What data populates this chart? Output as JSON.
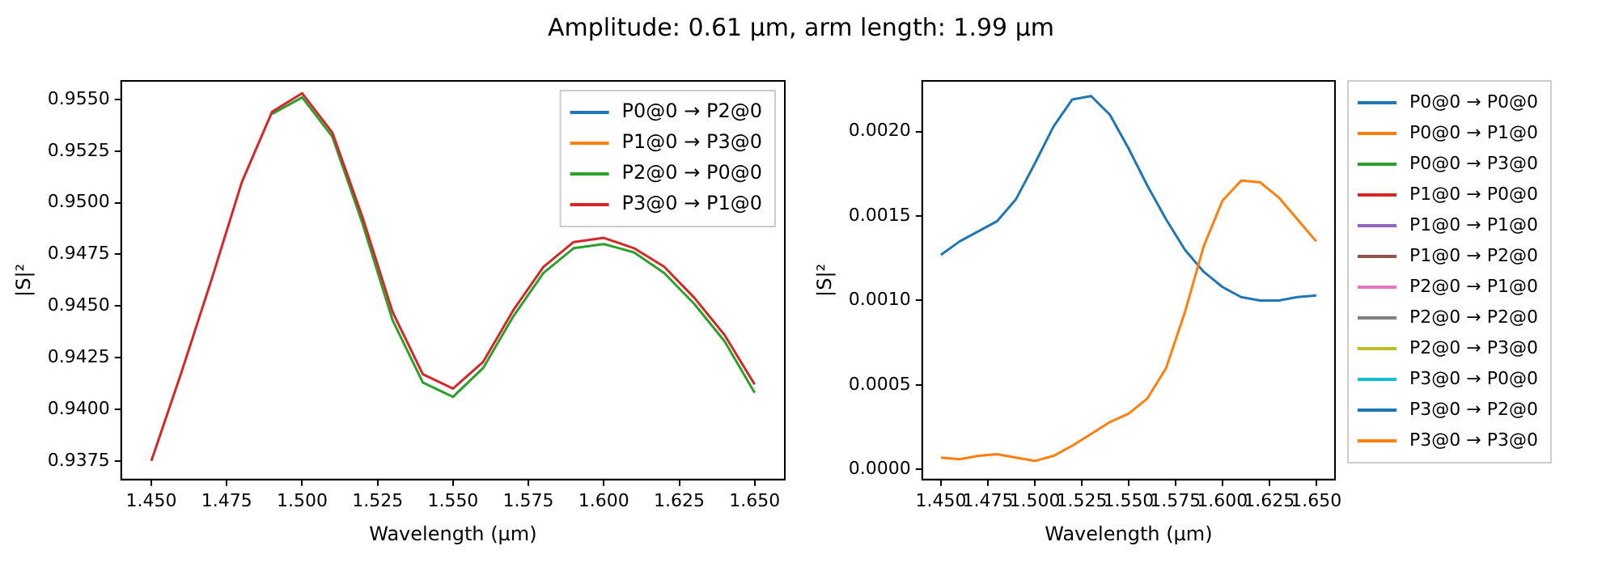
{
  "chart_data": [
    {
      "type": "line",
      "title": "Amplitude: 0.61 µm, arm length: 1.99 µm",
      "xlabel": "Wavelength (µm)",
      "ylabel": "|S|²",
      "legend": "top right",
      "grid": false,
      "x": [
        1.45,
        1.46,
        1.47,
        1.48,
        1.49,
        1.5,
        1.51,
        1.52,
        1.53,
        1.54,
        1.55,
        1.56,
        1.57,
        1.58,
        1.59,
        1.6,
        1.61,
        1.62,
        1.63,
        1.64,
        1.65
      ],
      "xlim": [
        1.44,
        1.66
      ],
      "xticks": [
        {
          "value": 1.45,
          "label": "1.450"
        },
        {
          "value": 1.475,
          "label": "1.475"
        },
        {
          "value": 1.5,
          "label": "1.500"
        },
        {
          "value": 1.525,
          "label": "1.525"
        },
        {
          "value": 1.55,
          "label": "1.550"
        },
        {
          "value": 1.575,
          "label": "1.575"
        },
        {
          "value": 1.6,
          "label": "1.600"
        },
        {
          "value": 1.625,
          "label": "1.625"
        },
        {
          "value": 1.65,
          "label": "1.650"
        }
      ],
      "ylim": [
        0.9366,
        0.9559
      ],
      "yticks": [
        {
          "value": 0.9375,
          "label": "0.9375"
        },
        {
          "value": 0.94,
          "label": "0.9400"
        },
        {
          "value": 0.9425,
          "label": "0.9425"
        },
        {
          "value": 0.945,
          "label": "0.9450"
        },
        {
          "value": 0.9475,
          "label": "0.9475"
        },
        {
          "value": 0.95,
          "label": "0.9500"
        },
        {
          "value": 0.9525,
          "label": "0.9525"
        },
        {
          "value": 0.955,
          "label": "0.9550"
        }
      ],
      "series": [
        {
          "name": "P0@0 → P2@0",
          "color": "#1f77b4",
          "values": [
            null,
            null,
            null,
            null,
            null,
            null,
            null,
            null,
            null,
            null,
            null,
            null,
            null,
            null,
            null,
            null,
            null,
            null,
            null,
            null,
            null
          ]
        },
        {
          "name": "P1@0 → P3@0",
          "color": "#ff7f0e",
          "values": [
            null,
            null,
            null,
            null,
            null,
            null,
            null,
            null,
            null,
            null,
            null,
            null,
            null,
            null,
            null,
            null,
            null,
            null,
            null,
            null,
            null
          ]
        },
        {
          "name": "P2@0 → P0@0",
          "color": "#2ca02c",
          "values": [
            null,
            null,
            null,
            null,
            0.9543,
            0.9551,
            0.9532,
            0.949,
            0.9443,
            0.9413,
            0.9406,
            0.942,
            0.9445,
            0.9466,
            0.9478,
            0.948,
            0.9476,
            0.9466,
            0.9451,
            0.9433,
            0.9408
          ]
        },
        {
          "name": "P3@0 → P1@0",
          "color": "#d62728",
          "values": [
            0.9375,
            0.9418,
            0.9463,
            0.951,
            0.9544,
            0.9553,
            0.9534,
            0.9493,
            0.9447,
            0.9417,
            0.941,
            0.9423,
            0.9448,
            0.9469,
            0.9481,
            0.9483,
            0.9478,
            0.9469,
            0.9454,
            0.9436,
            0.9412
          ]
        }
      ]
    },
    {
      "type": "line",
      "xlabel": "Wavelength (µm)",
      "ylabel": "|S|²",
      "legend": "right",
      "grid": false,
      "x": [
        1.45,
        1.46,
        1.47,
        1.48,
        1.49,
        1.5,
        1.51,
        1.52,
        1.53,
        1.54,
        1.55,
        1.56,
        1.57,
        1.58,
        1.59,
        1.6,
        1.61,
        1.62,
        1.63,
        1.64,
        1.65
      ],
      "xlim": [
        1.44,
        1.66
      ],
      "xticks": [
        {
          "value": 1.45,
          "label": "1.450"
        },
        {
          "value": 1.475,
          "label": "1.475"
        },
        {
          "value": 1.5,
          "label": "1.500"
        },
        {
          "value": 1.525,
          "label": "1.525"
        },
        {
          "value": 1.55,
          "label": "1.550"
        },
        {
          "value": 1.575,
          "label": "1.575"
        },
        {
          "value": 1.6,
          "label": "1.600"
        },
        {
          "value": 1.625,
          "label": "1.625"
        },
        {
          "value": 1.65,
          "label": "1.650"
        }
      ],
      "ylim": [
        -6e-05,
        0.0023
      ],
      "yticks": [
        {
          "value": 0,
          "label": "0.0000"
        },
        {
          "value": 0.0005,
          "label": "0.0005"
        },
        {
          "value": 0.001,
          "label": "0.0010"
        },
        {
          "value": 0.0015,
          "label": "0.0015"
        },
        {
          "value": 0.002,
          "label": "0.0020"
        }
      ],
      "series": [
        {
          "name": "P0@0 → P0@0",
          "color": "#1f77b4",
          "values": [
            null,
            null,
            null,
            null,
            null,
            null,
            null,
            null,
            null,
            null,
            null,
            null,
            null,
            null,
            null,
            null,
            null,
            null,
            null,
            null,
            null
          ]
        },
        {
          "name": "P0@0 → P1@0",
          "color": "#ff7f0e",
          "values": [
            null,
            null,
            null,
            null,
            null,
            null,
            null,
            null,
            null,
            null,
            null,
            null,
            null,
            null,
            null,
            null,
            null,
            null,
            null,
            null,
            null
          ]
        },
        {
          "name": "P0@0 → P3@0",
          "color": "#2ca02c",
          "values": [
            null,
            null,
            null,
            null,
            null,
            null,
            null,
            null,
            null,
            null,
            null,
            null,
            null,
            null,
            null,
            null,
            null,
            null,
            null,
            null,
            null
          ]
        },
        {
          "name": "P1@0 → P0@0",
          "color": "#d62728",
          "values": [
            null,
            null,
            null,
            null,
            null,
            null,
            null,
            null,
            null,
            null,
            null,
            null,
            null,
            null,
            null,
            null,
            null,
            null,
            null,
            null,
            null
          ]
        },
        {
          "name": "P1@0 → P1@0",
          "color": "#9467bd",
          "values": [
            null,
            null,
            null,
            null,
            null,
            null,
            null,
            null,
            null,
            null,
            null,
            null,
            null,
            null,
            null,
            null,
            null,
            null,
            null,
            null,
            null
          ]
        },
        {
          "name": "P1@0 → P2@0",
          "color": "#8c564b",
          "values": [
            null,
            null,
            null,
            null,
            null,
            null,
            null,
            null,
            null,
            null,
            null,
            null,
            null,
            null,
            null,
            null,
            null,
            null,
            null,
            null,
            null
          ]
        },
        {
          "name": "P2@0 → P1@0",
          "color": "#e377c2",
          "values": [
            null,
            null,
            null,
            null,
            null,
            null,
            null,
            null,
            null,
            null,
            null,
            null,
            null,
            null,
            null,
            null,
            null,
            null,
            null,
            null,
            null
          ]
        },
        {
          "name": "P2@0 → P2@0",
          "color": "#7f7f7f",
          "values": [
            null,
            null,
            null,
            null,
            null,
            null,
            null,
            null,
            null,
            null,
            null,
            null,
            null,
            null,
            null,
            null,
            null,
            null,
            null,
            null,
            null
          ]
        },
        {
          "name": "P2@0 → P3@0",
          "color": "#bcbd22",
          "values": [
            null,
            null,
            null,
            null,
            null,
            null,
            null,
            null,
            null,
            null,
            null,
            null,
            null,
            null,
            null,
            null,
            null,
            null,
            null,
            null,
            null
          ]
        },
        {
          "name": "P3@0 → P0@0",
          "color": "#17becf",
          "values": [
            null,
            null,
            null,
            null,
            null,
            null,
            null,
            null,
            null,
            null,
            null,
            null,
            null,
            null,
            null,
            null,
            null,
            null,
            null,
            null,
            null
          ]
        },
        {
          "name": "P3@0 → P2@0",
          "color": "#1f77b4",
          "values": [
            0.00127,
            0.00135,
            0.00141,
            0.00147,
            0.0016,
            0.00181,
            0.00203,
            0.00219,
            0.00221,
            0.0021,
            0.0019,
            0.00168,
            0.00148,
            0.0013,
            0.00117,
            0.00108,
            0.00102,
            0.001,
            0.001,
            0.00102,
            0.00103
          ]
        },
        {
          "name": "P3@0 → P3@0",
          "color": "#ff7f0e",
          "values": [
            7e-05,
            6e-05,
            8e-05,
            9e-05,
            7e-05,
            5e-05,
            8e-05,
            0.00014,
            0.00021,
            0.00028,
            0.00033,
            0.00042,
            0.0006,
            0.00093,
            0.00132,
            0.00159,
            0.00171,
            0.0017,
            0.00161,
            0.00148,
            0.00135
          ]
        }
      ]
    }
  ]
}
